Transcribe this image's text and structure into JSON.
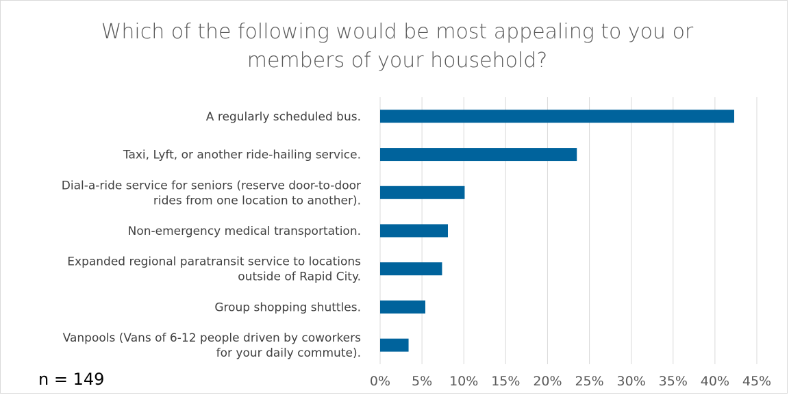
{
  "chart_data": {
    "type": "bar",
    "orientation": "horizontal",
    "title_lines": [
      "Which of the following would be most appealing to you or",
      "members of your household?"
    ],
    "categories": [
      [
        "A regularly scheduled bus."
      ],
      [
        "Taxi, Lyft, or another ride-hailing service."
      ],
      [
        "Dial-a-ride service for seniors (reserve door-to-door",
        "rides from one location to another)."
      ],
      [
        "Non-emergency medical transportation."
      ],
      [
        "Expanded regional paratransit service to locations",
        "outside of Rapid City."
      ],
      [
        "Group shopping shuttles."
      ],
      [
        "Vanpools (Vans of 6-12 people driven by coworkers",
        "for your daily commute)."
      ]
    ],
    "values": [
      42.3,
      23.5,
      10.1,
      8.1,
      7.4,
      5.4,
      3.4
    ],
    "xlim": [
      0,
      45
    ],
    "xticks": [
      "0%",
      "5%",
      "10%",
      "15%",
      "20%",
      "25%",
      "30%",
      "35%",
      "40%",
      "45%"
    ],
    "grid": true,
    "bar_color": "#00639c",
    "annotation": "n = 149"
  }
}
